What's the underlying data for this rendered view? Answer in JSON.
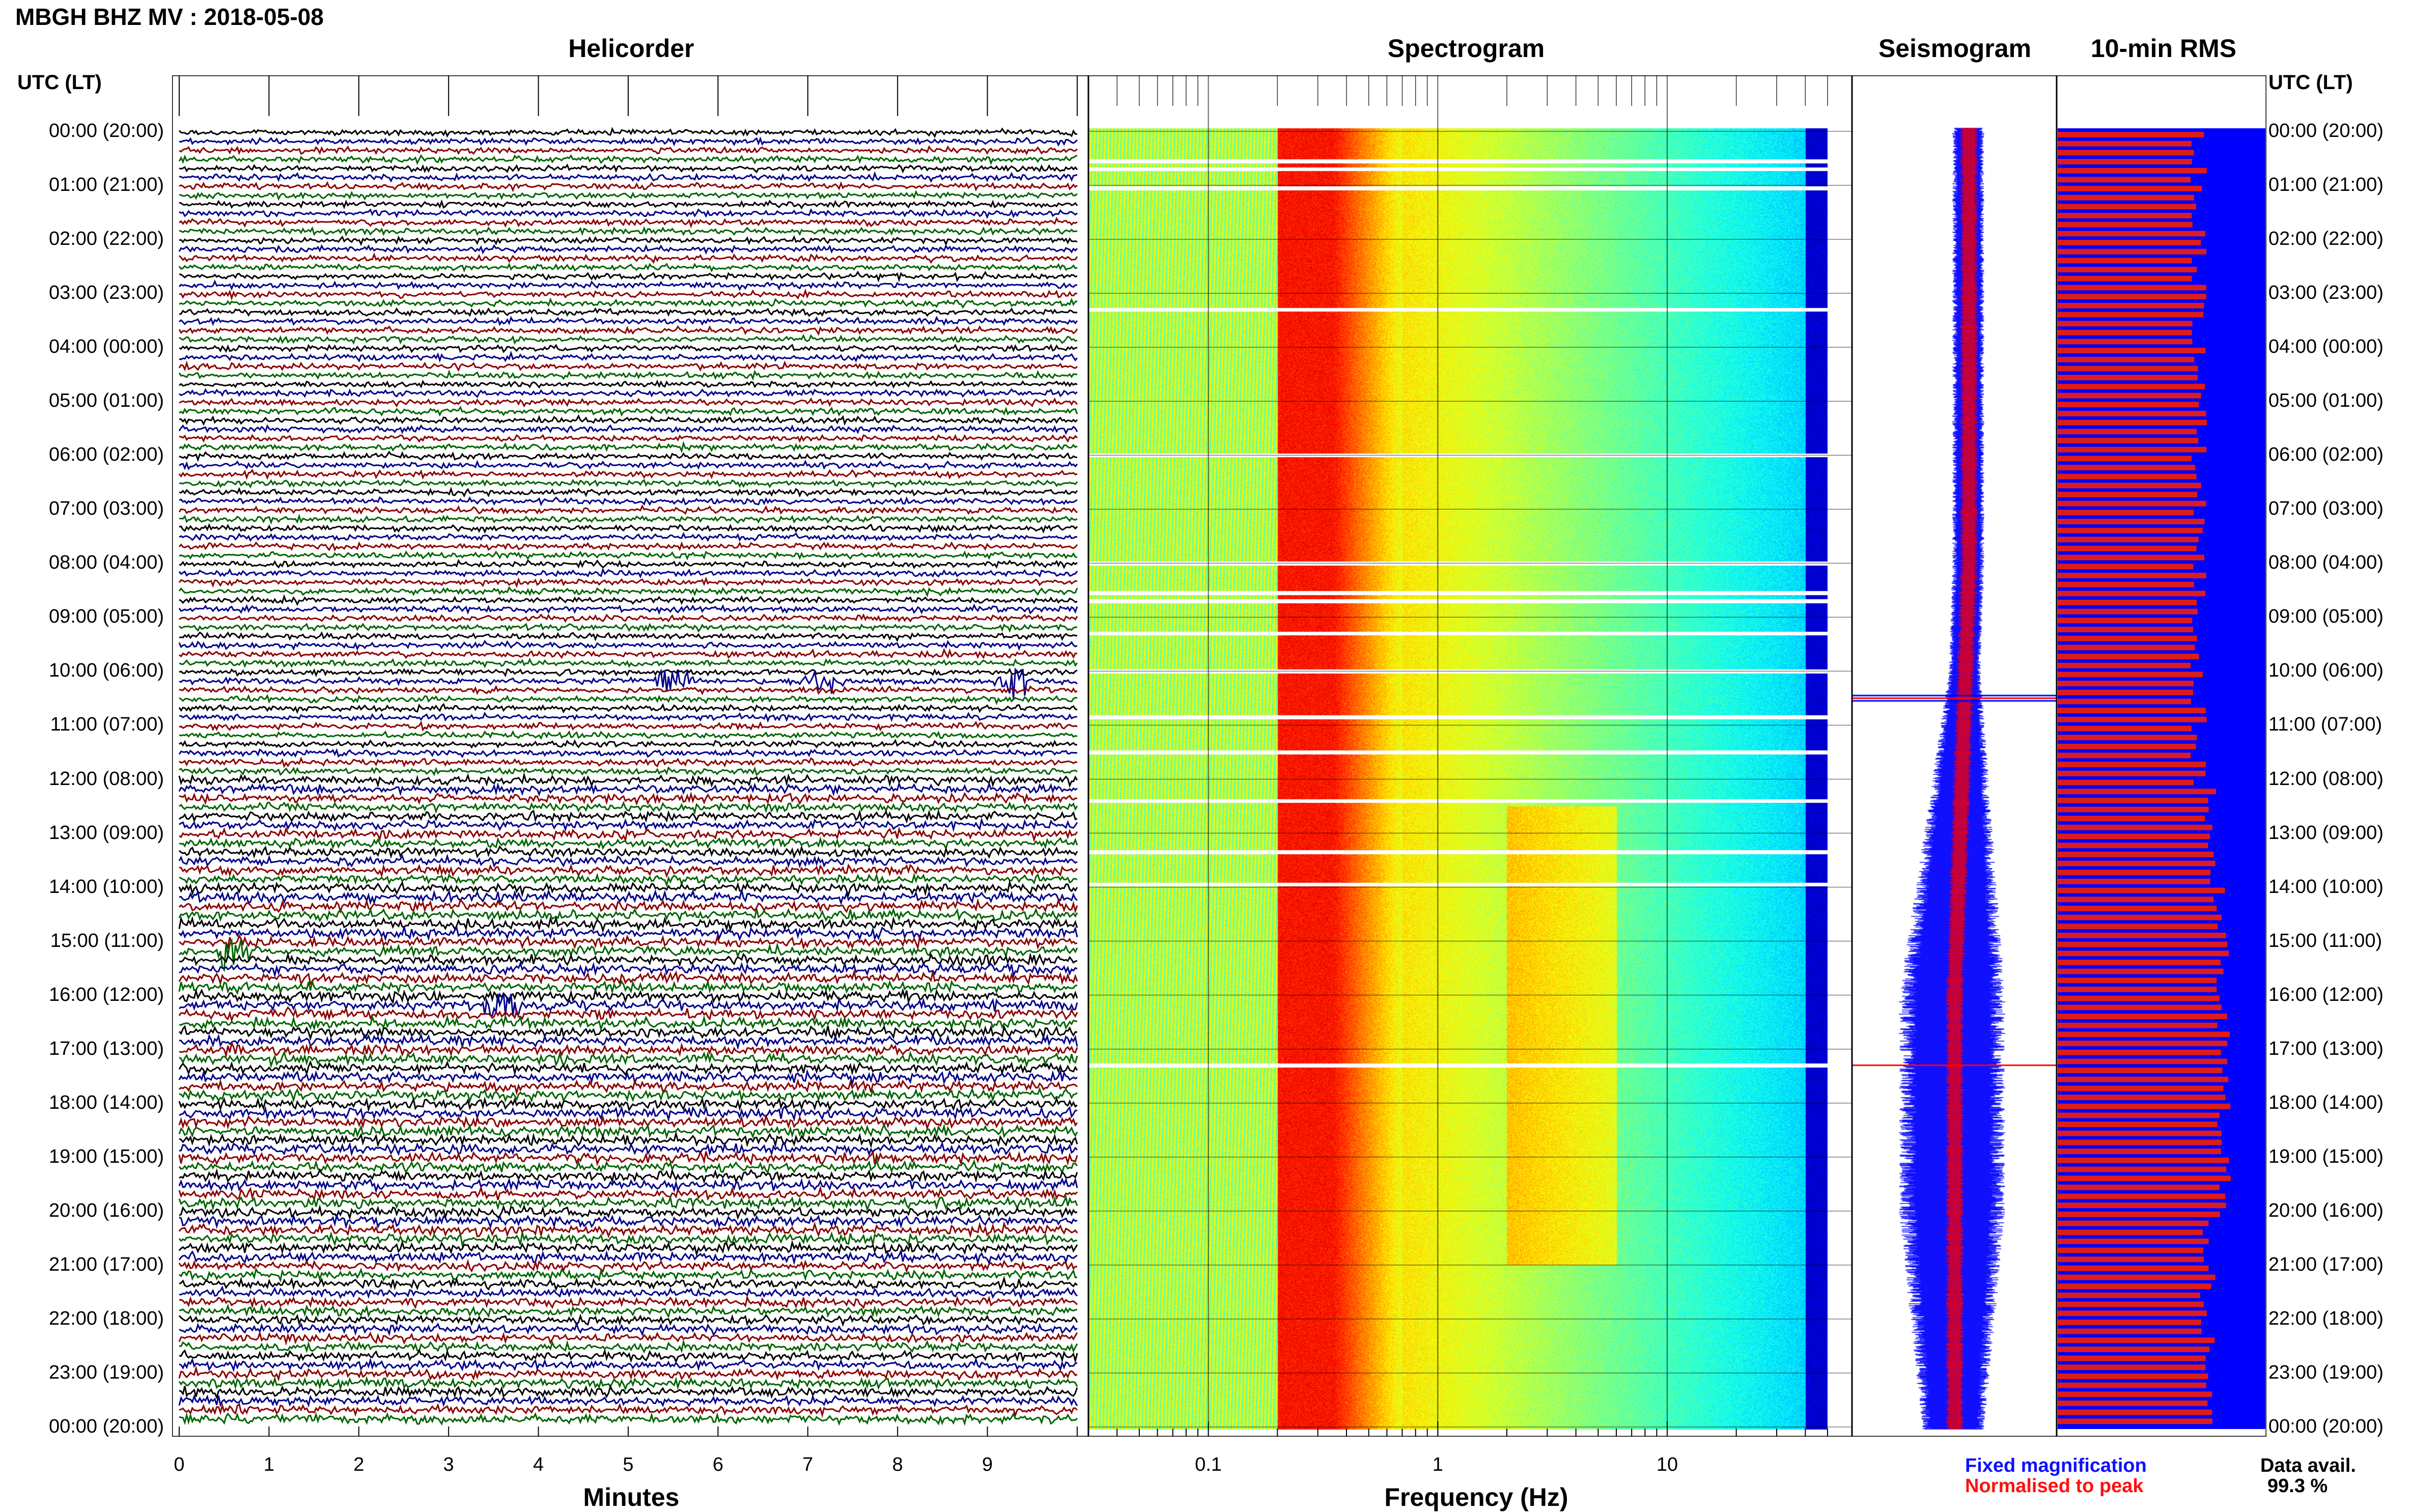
{
  "header": {
    "title": "MBGH BHZ MV : 2018-05-08",
    "utc_label_left": "UTC (LT)",
    "utc_label_right": "UTC (LT)"
  },
  "panels": {
    "helicorder": "Helicorder",
    "spectrogram": "Spectrogram",
    "seismogram": "Seismogram",
    "rms": "10-min RMS"
  },
  "hours": [
    "00:00 (20:00)",
    "01:00 (21:00)",
    "02:00 (22:00)",
    "03:00 (23:00)",
    "04:00 (00:00)",
    "05:00 (01:00)",
    "06:00 (02:00)",
    "07:00 (03:00)",
    "08:00 (04:00)",
    "09:00 (05:00)",
    "10:00 (06:00)",
    "11:00 (07:00)",
    "12:00 (08:00)",
    "13:00 (09:00)",
    "14:00 (10:00)",
    "15:00 (11:00)",
    "16:00 (12:00)",
    "17:00 (13:00)",
    "18:00 (14:00)",
    "19:00 (15:00)",
    "20:00 (16:00)",
    "21:00 (17:00)",
    "22:00 (18:00)",
    "23:00 (19:00)",
    "00:00 (20:00)"
  ],
  "axes": {
    "minutes_label": "Minutes",
    "minutes_ticks": [
      "0",
      "1",
      "2",
      "3",
      "4",
      "5",
      "6",
      "7",
      "8",
      "9"
    ],
    "frequency_label": "Frequency (Hz)",
    "frequency_ticks": [
      "0.1",
      "1",
      "10"
    ]
  },
  "legend": {
    "fixed": "Fixed magnification",
    "normalised": "Normalised to peak"
  },
  "data_availability": {
    "label": "Data avail.",
    "value": "99.3 %"
  },
  "colors": {
    "trace_black": "#000000",
    "trace_blue": "#00008b",
    "trace_red": "#8b0000",
    "trace_green": "#006400",
    "seis_blue": "#0000ff",
    "seis_red": "#ff0000",
    "rms_red": "#dd1c1c",
    "rms_blue": "#0000ff"
  },
  "chart_data": [
    {
      "type": "line",
      "name": "helicorder",
      "xlabel": "Minutes",
      "xlim": [
        0,
        10
      ],
      "rows_per_hour": 6,
      "series_colors_cycle": [
        "black",
        "blue",
        "red",
        "green"
      ],
      "events_minutes": [
        {
          "hour": 10,
          "minute": 5.5
        },
        {
          "hour": 10,
          "minute": 7.2
        },
        {
          "hour": 10,
          "minute": 9.3
        },
        {
          "hour": 15,
          "minute": 0.6
        },
        {
          "hour": 16,
          "minute": 3.6
        }
      ]
    },
    {
      "type": "heatmap",
      "name": "spectrogram",
      "xlabel": "Frequency (Hz)",
      "xscale": "log",
      "xlim": [
        0.03,
        50
      ],
      "peak_band_hz": [
        0.2,
        0.6
      ],
      "secondary_band_hz": [
        2,
        6
      ]
    },
    {
      "type": "area",
      "name": "seismogram",
      "series": [
        {
          "name": "Fixed magnification"
        },
        {
          "name": "Normalised to peak"
        }
      ]
    },
    {
      "type": "bar",
      "name": "10-min RMS",
      "bars": 144
    }
  ]
}
